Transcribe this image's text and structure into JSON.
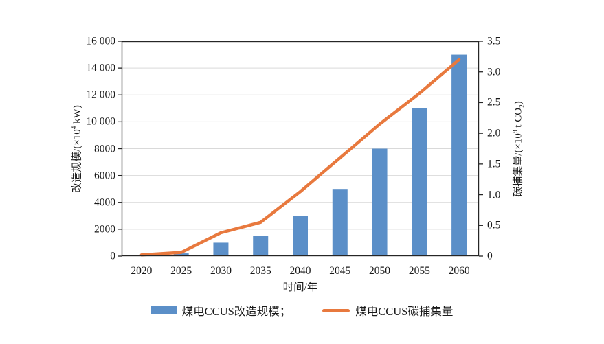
{
  "chart_data": {
    "type": "bar",
    "subtype": "bar+line dual-axis",
    "categories": [
      "2020",
      "2025",
      "2030",
      "2035",
      "2040",
      "2045",
      "2050",
      "2055",
      "2060"
    ],
    "series": [
      {
        "name": "煤电CCUS改造规模",
        "type": "bar",
        "axis": "left",
        "values": [
          0,
          200,
          1000,
          1500,
          3000,
          5000,
          8000,
          11000,
          15000
        ]
      },
      {
        "name": "煤电CCUS碳捕集量",
        "type": "line",
        "axis": "right",
        "values": [
          0.02,
          0.06,
          0.38,
          0.55,
          1.05,
          1.6,
          2.15,
          2.65,
          3.2
        ]
      }
    ],
    "title": "",
    "xlabel": "时间/年",
    "left_axis": {
      "title_pre": "改造规模/(×10",
      "title_sup": "4",
      "title_post": " kW)",
      "min": 0,
      "max": 16000,
      "tick_labels": [
        "0",
        "2000",
        "4000",
        "6000",
        "8000",
        "10 000",
        "12 000",
        "14 000",
        "16 000"
      ]
    },
    "right_axis": {
      "title_pre": "碳捕集量/(×10",
      "title_sup": "8",
      "title_mid": " t CO",
      "title_sub": "2",
      "title_post": ")",
      "min": 0,
      "max": 3.5,
      "tick_labels": [
        "0",
        "0.5",
        "1.0",
        "1.5",
        "2.0",
        "2.5",
        "3.0",
        "3.5"
      ]
    },
    "grid": true,
    "legend": {
      "position": "bottom",
      "items": [
        {
          "label": "煤电CCUS改造规模；",
          "swatch": "bar"
        },
        {
          "label": "煤电CCUS碳捕集量",
          "swatch": "line"
        }
      ]
    }
  },
  "colors": {
    "bar": "#5B8FC8",
    "line": "#E8793E",
    "grid": "#D9D9D9",
    "frame": "#262626",
    "tick": "#262626",
    "background": "#FFFFFF"
  }
}
